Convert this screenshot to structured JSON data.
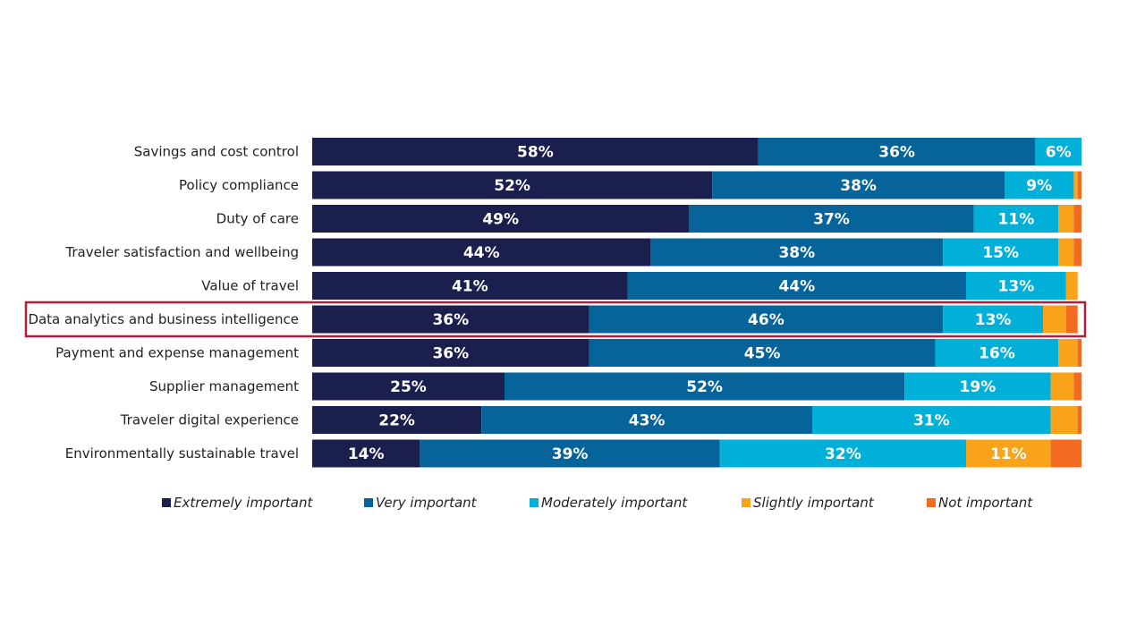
{
  "chart_data": {
    "type": "bar",
    "orientation": "horizontal",
    "stacked": true,
    "percent_stacked": true,
    "title": "",
    "xlabel": "",
    "ylabel": "",
    "xlim": [
      0,
      100
    ],
    "grid": false,
    "legend_position": "bottom",
    "highlighted_category": "Data analytics and business intelligence",
    "highlight_color": "#b01e3c",
    "categories": [
      "Savings and cost control",
      "Policy compliance",
      "Duty of care",
      "Traveler satisfaction and wellbeing",
      "Value of travel",
      "Data analytics and business intelligence",
      "Payment and expense management",
      "Supplier management",
      "Traveler digital experience",
      "Environmentally sustainable travel"
    ],
    "series": [
      {
        "name": "Extremely important",
        "color": "#1a1f4e",
        "values": [
          58,
          52,
          49,
          44,
          41,
          36,
          36,
          25,
          22,
          14
        ]
      },
      {
        "name": "Very important",
        "color": "#07649a",
        "values": [
          36,
          38,
          37,
          38,
          44,
          46,
          45,
          52,
          43,
          39
        ]
      },
      {
        "name": "Moderately important",
        "color": "#00b0d8",
        "values": [
          6,
          9,
          11,
          15,
          13,
          13,
          16,
          19,
          31,
          32
        ]
      },
      {
        "name": "Slightly important",
        "color": "#f8a31a",
        "values": [
          0,
          0.5,
          2,
          2,
          1.5,
          3,
          2.5,
          3,
          3.5,
          11
        ]
      },
      {
        "name": "Not important",
        "color": "#f26b21",
        "values": [
          1,
          0.5,
          1,
          1,
          0,
          1.5,
          1.5,
          1.5,
          1,
          4.5
        ]
      }
    ],
    "data_labels": [
      [
        "58%",
        "36%",
        "6%",
        "",
        ""
      ],
      [
        "52%",
        "38%",
        "9%",
        "",
        ""
      ],
      [
        "49%",
        "37%",
        "11%",
        "",
        ""
      ],
      [
        "44%",
        "38%",
        "15%",
        "",
        ""
      ],
      [
        "41%",
        "44%",
        "13%",
        "",
        ""
      ],
      [
        "36%",
        "46%",
        "13%",
        "",
        ""
      ],
      [
        "36%",
        "45%",
        "16%",
        "",
        ""
      ],
      [
        "25%",
        "52%",
        "19%",
        "",
        ""
      ],
      [
        "22%",
        "43%",
        "31%",
        "",
        ""
      ],
      [
        "14%",
        "39%",
        "32%",
        "11%",
        ""
      ]
    ]
  }
}
